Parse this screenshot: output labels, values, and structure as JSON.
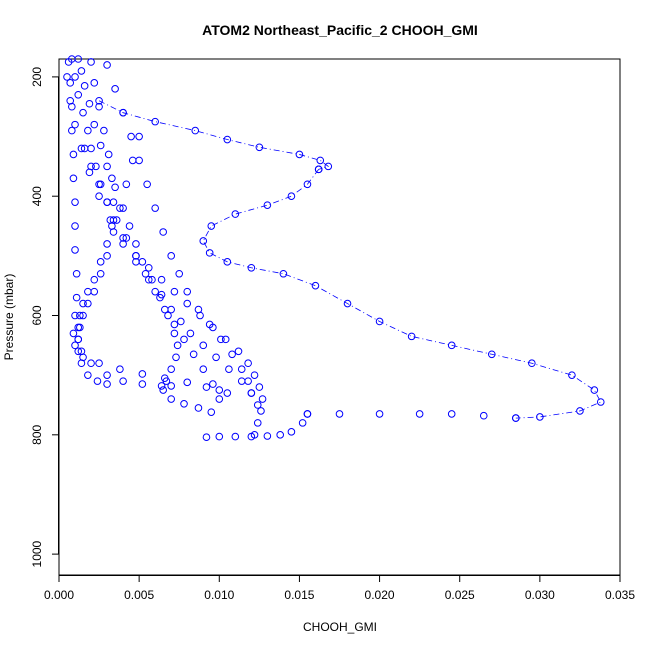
{
  "chart_data": {
    "type": "scatter",
    "title": "ATOM2 Northeast_Pacific_2 CHOOH_GMI",
    "xlabel": "CHOOH_GMI",
    "ylabel": "Pressure (mbar)",
    "xlim": [
      0.0,
      0.035
    ],
    "ylim": [
      1035,
      170
    ],
    "y_inverted": true,
    "grid": false,
    "legend": "none",
    "marker": "open-circle",
    "color": "#0000ff",
    "x_ticks": [
      0.0,
      0.005,
      0.01,
      0.015,
      0.02,
      0.025,
      0.03,
      0.035
    ],
    "x_tick_labels": [
      "0.000",
      "0.005",
      "0.010",
      "0.015",
      "0.020",
      "0.025",
      "0.030",
      "0.035"
    ],
    "y_ticks": [
      200,
      400,
      600,
      800,
      1000
    ],
    "y_tick_labels": [
      "200",
      "400",
      "600",
      "800",
      "1000"
    ],
    "series": [
      {
        "x": [
          0.0162,
          0.0155,
          0.0145,
          0.013,
          0.011,
          0.0095,
          0.009,
          0.0094,
          0.0105,
          0.012,
          0.014,
          0.016,
          0.018,
          0.02,
          0.022,
          0.0245,
          0.027,
          0.0295,
          0.032,
          0.0334,
          0.0338,
          0.0325,
          0.03,
          0.0285
        ],
        "y": [
          355,
          380,
          400,
          415,
          430,
          450,
          475,
          495,
          510,
          520,
          530,
          550,
          580,
          610,
          635,
          650,
          665,
          680,
          700,
          725,
          745,
          760,
          770,
          772
        ]
      },
      {
        "x": [
          0.0025,
          0.004,
          0.006,
          0.0085,
          0.0105,
          0.0125,
          0.015,
          0.0163,
          0.0168,
          0.0162
        ],
        "y": [
          240,
          260,
          275,
          290,
          305,
          318,
          330,
          340,
          350,
          355
        ]
      },
      {
        "x": [
          0.0155,
          0.0175,
          0.02,
          0.0225,
          0.0245,
          0.0265,
          0.0285
        ],
        "y": [
          765,
          765,
          765,
          765,
          765,
          768,
          772
        ]
      },
      {
        "x": [
          0.0155,
          0.0152,
          0.0145,
          0.0138,
          0.013,
          0.012,
          0.011,
          0.01,
          0.0092
        ],
        "y": [
          765,
          780,
          795,
          800,
          802,
          803,
          803,
          803,
          804
        ]
      },
      {
        "x": [
          0.0008,
          0.001,
          0.0012,
          0.0015,
          0.0018,
          0.002,
          0.0023,
          0.0026,
          0.003,
          0.0034,
          0.004,
          0.0048,
          0.0056,
          0.0064,
          0.0072,
          0.008,
          0.0088,
          0.0096,
          0.0104,
          0.0112,
          0.0118,
          0.0122,
          0.0125,
          0.0127,
          0.0126,
          0.0124,
          0.0122
        ],
        "y": [
          170,
          200,
          230,
          260,
          290,
          320,
          350,
          380,
          410,
          440,
          470,
          500,
          520,
          540,
          560,
          580,
          600,
          620,
          640,
          660,
          680,
          700,
          720,
          740,
          760,
          780,
          800
        ]
      },
      {
        "x": [
          0.0012,
          0.0014,
          0.0016,
          0.0019,
          0.0022,
          0.0026,
          0.003,
          0.0035,
          0.004,
          0.0044,
          0.0048,
          0.0052,
          0.0058,
          0.0064,
          0.007,
          0.0076,
          0.0082,
          0.009,
          0.0098,
          0.0106,
          0.0114,
          0.012,
          0.0124
        ],
        "y": [
          170,
          190,
          215,
          245,
          280,
          315,
          350,
          385,
          420,
          450,
          480,
          510,
          540,
          565,
          590,
          610,
          630,
          650,
          670,
          690,
          710,
          730,
          750
        ]
      },
      {
        "x": [
          0.002,
          0.0022,
          0.0025,
          0.0028,
          0.0031,
          0.0033,
          0.0034,
          0.0033,
          0.003,
          0.0026,
          0.0022,
          0.0018,
          0.0015,
          0.0013,
          0.0012,
          0.0012,
          0.0014,
          0.002,
          0.003,
          0.004,
          0.0052,
          0.0064,
          0.007
        ],
        "y": [
          175,
          210,
          250,
          290,
          330,
          370,
          410,
          450,
          480,
          510,
          540,
          560,
          580,
          600,
          620,
          640,
          660,
          680,
          700,
          710,
          715,
          718,
          718
        ]
      },
      {
        "x": [
          0.0006,
          0.0007,
          0.0008,
          0.0008,
          0.0009,
          0.0009,
          0.001,
          0.001,
          0.001,
          0.0011,
          0.0011,
          0.001,
          0.0009,
          0.001,
          0.0015,
          0.0025,
          0.0038,
          0.0052,
          0.0066,
          0.008,
          0.0092,
          0.01,
          0.0105
        ],
        "y": [
          175,
          210,
          250,
          290,
          330,
          370,
          410,
          450,
          490,
          530,
          570,
          600,
          630,
          650,
          670,
          680,
          690,
          698,
          705,
          712,
          720,
          725,
          730
        ]
      },
      {
        "x": [
          0.0005,
          0.0007,
          0.001,
          0.0014,
          0.0019,
          0.0025,
          0.0032,
          0.004,
          0.0048,
          0.0056,
          0.0063,
          0.0068,
          0.0072,
          0.0074,
          0.0073,
          0.007,
          0.0067,
          0.0065,
          0.007,
          0.0078,
          0.0087,
          0.0095
        ],
        "y": [
          200,
          240,
          280,
          320,
          360,
          400,
          440,
          480,
          510,
          540,
          570,
          600,
          630,
          650,
          670,
          690,
          710,
          725,
          740,
          748,
          755,
          762
        ]
      },
      {
        "x": [
          0.003,
          0.0035,
          0.004,
          0.0045,
          0.005,
          0.0055,
          0.006,
          0.0065,
          0.007,
          0.0075,
          0.008,
          0.0087,
          0.0094,
          0.0101,
          0.0108,
          0.0114,
          0.0118,
          0.012
        ],
        "y": [
          180,
          220,
          260,
          300,
          340,
          380,
          420,
          460,
          500,
          530,
          560,
          590,
          615,
          640,
          665,
          690,
          710,
          730
        ]
      },
      {
        "x": [
          0.0016,
          0.002,
          0.0025,
          0.003,
          0.0036,
          0.0042,
          0.0048,
          0.0054,
          0.006,
          0.0066,
          0.0072,
          0.0078,
          0.0084,
          0.009,
          0.0096,
          0.01
        ],
        "y": [
          320,
          350,
          380,
          410,
          440,
          470,
          500,
          530,
          560,
          590,
          615,
          640,
          665,
          690,
          715,
          740
        ]
      },
      {
        "x": [
          0.005,
          0.0046,
          0.0042,
          0.0038,
          0.0034,
          0.003,
          0.0026,
          0.0022,
          0.0018,
          0.0015,
          0.0013,
          0.0012,
          0.0012,
          0.0014,
          0.0018,
          0.0024,
          0.003
        ],
        "y": [
          300,
          340,
          380,
          420,
          460,
          500,
          530,
          560,
          580,
          600,
          620,
          640,
          660,
          680,
          700,
          710,
          715
        ]
      }
    ]
  }
}
